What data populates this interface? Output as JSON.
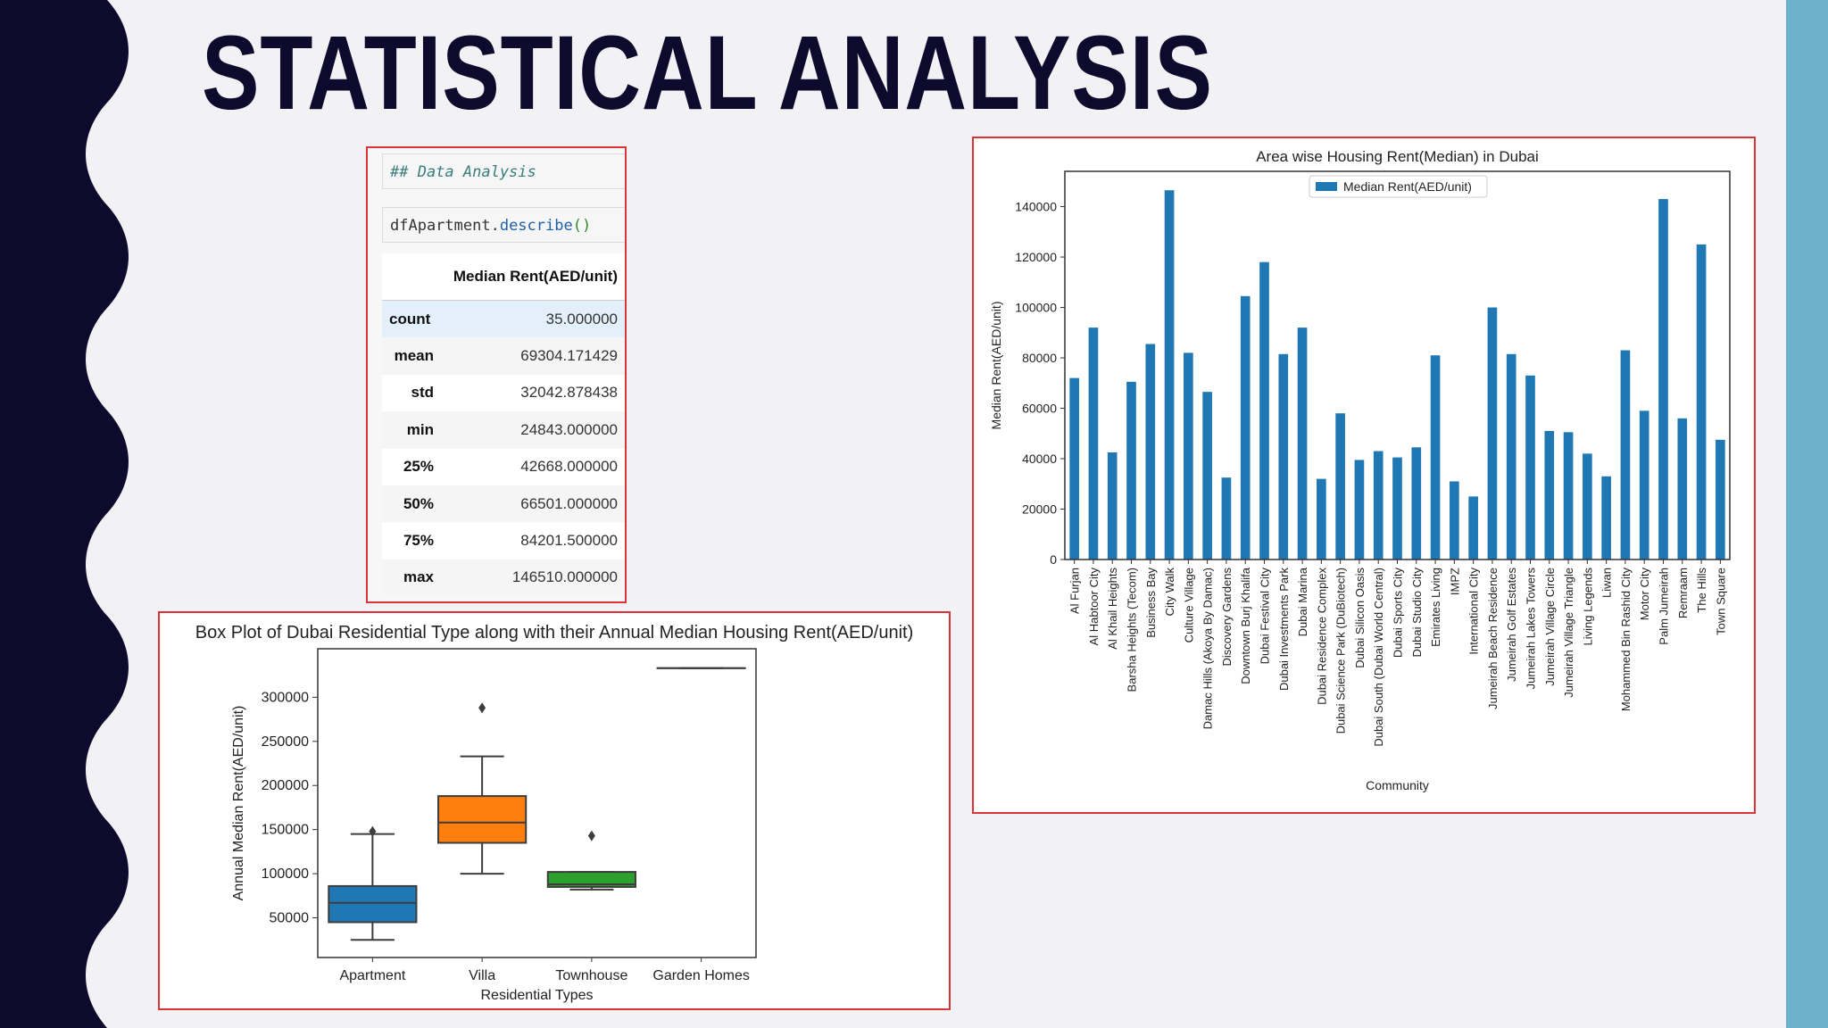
{
  "slide": {
    "title": "STATISTICAL ANALYSIS",
    "colors": {
      "left_band": "#0e0a2e",
      "right_band": "#6eb1cc",
      "frame_border": "#d8343a",
      "bar": "#1f77b4"
    }
  },
  "notebook": {
    "markdown_cell": "## Data Analysis",
    "code_cell": {
      "object": "dfApartment.",
      "method": "describe",
      "parens": "()"
    },
    "table": {
      "column": "Median Rent(AED/unit)",
      "rows": [
        {
          "label": "count",
          "value": "35.000000"
        },
        {
          "label": "mean",
          "value": "69304.171429"
        },
        {
          "label": "std",
          "value": "32042.878438"
        },
        {
          "label": "min",
          "value": "24843.000000"
        },
        {
          "label": "25%",
          "value": "42668.000000"
        },
        {
          "label": "50%",
          "value": "66501.000000"
        },
        {
          "label": "75%",
          "value": "84201.500000"
        },
        {
          "label": "max",
          "value": "146510.000000"
        }
      ]
    }
  },
  "chart_data": [
    {
      "type": "box",
      "title": "Box Plot of Dubai Residential Type along with their Annual Median Housing Rent(AED/unit)",
      "xlabel": "Residential Types",
      "ylabel": "Annual Median Rent(AED/unit)",
      "ylim": [
        5000,
        355000
      ],
      "yticks": [
        50000,
        100000,
        150000,
        200000,
        250000,
        300000
      ],
      "grid": false,
      "categories": [
        "Apartment",
        "Villa",
        "Townhouse",
        "Garden Homes"
      ],
      "boxes": [
        {
          "category": "Apartment",
          "color": "#1f77b4",
          "whisker_low": 25000,
          "q1": 45000,
          "median": 67000,
          "q3": 86000,
          "whisker_high": 145000,
          "outliers": [
            148000
          ]
        },
        {
          "category": "Villa",
          "color": "#ff7f0e",
          "whisker_low": 100000,
          "q1": 135000,
          "median": 158000,
          "q3": 188000,
          "whisker_high": 233000,
          "outliers": [
            288000
          ]
        },
        {
          "category": "Townhouse",
          "color": "#2ca02c",
          "whisker_low": 82000,
          "q1": 85000,
          "median": 88000,
          "q3": 102000,
          "whisker_high": 102000,
          "outliers": [
            143000
          ]
        },
        {
          "category": "Garden Homes",
          "color": "#1f77b4",
          "whisker_low": 333000,
          "q1": 333000,
          "median": 333000,
          "q3": 333000,
          "whisker_high": 333000,
          "outliers": []
        }
      ]
    },
    {
      "type": "bar",
      "title": "Area wise Housing Rent(Median) in Dubai",
      "xlabel": "Community",
      "ylabel": "Median Rent(AED/unit)",
      "ylim": [
        0,
        154000
      ],
      "yticks": [
        0,
        20000,
        40000,
        60000,
        80000,
        100000,
        120000,
        140000
      ],
      "grid": false,
      "legend": "top-center",
      "categories": [
        "Al Furjan",
        "Al Habtoor City",
        "Al Khail Heights",
        "Barsha Heights (Tecom)",
        "Business Bay",
        "City Walk",
        "Culture Village",
        "Damac Hills (Akoya By Damac)",
        "Discovery Gardens",
        "Downtown Burj Khalifa",
        "Dubai Festival City",
        "Dubai Investments Park",
        "Dubai Marina",
        "Dubai Residence Complex",
        "Dubai Science Park (DuBiotech)",
        "Dubai Silicon Oasis",
        "Dubai South (Dubai World Central)",
        "Dubai Sports City",
        "Dubai Studio City",
        "Emirates Living",
        "IMPZ",
        "International City",
        "Jumeirah Beach Residence",
        "Jumeirah Golf Estates",
        "Jumeirah Lakes Towers",
        "Jumeirah Village Circle",
        "Jumeirah Village Triangle",
        "Living Legends",
        "Liwan",
        "Mohammed Bin Rashid City",
        "Motor City",
        "Palm Jumeirah",
        "Remraam",
        "The Hills",
        "Town Square"
      ],
      "series": [
        {
          "name": "Median Rent(AED/unit)",
          "color": "#1f77b4",
          "values": [
            72000,
            92000,
            42500,
            70500,
            85500,
            146500,
            82000,
            66500,
            32500,
            104500,
            118000,
            81500,
            92000,
            32000,
            58000,
            39500,
            43000,
            40500,
            44500,
            81000,
            31000,
            25000,
            100000,
            81500,
            73000,
            51000,
            50500,
            42000,
            33000,
            83000,
            59000,
            143000,
            56000,
            125000,
            47500
          ]
        }
      ]
    }
  ]
}
